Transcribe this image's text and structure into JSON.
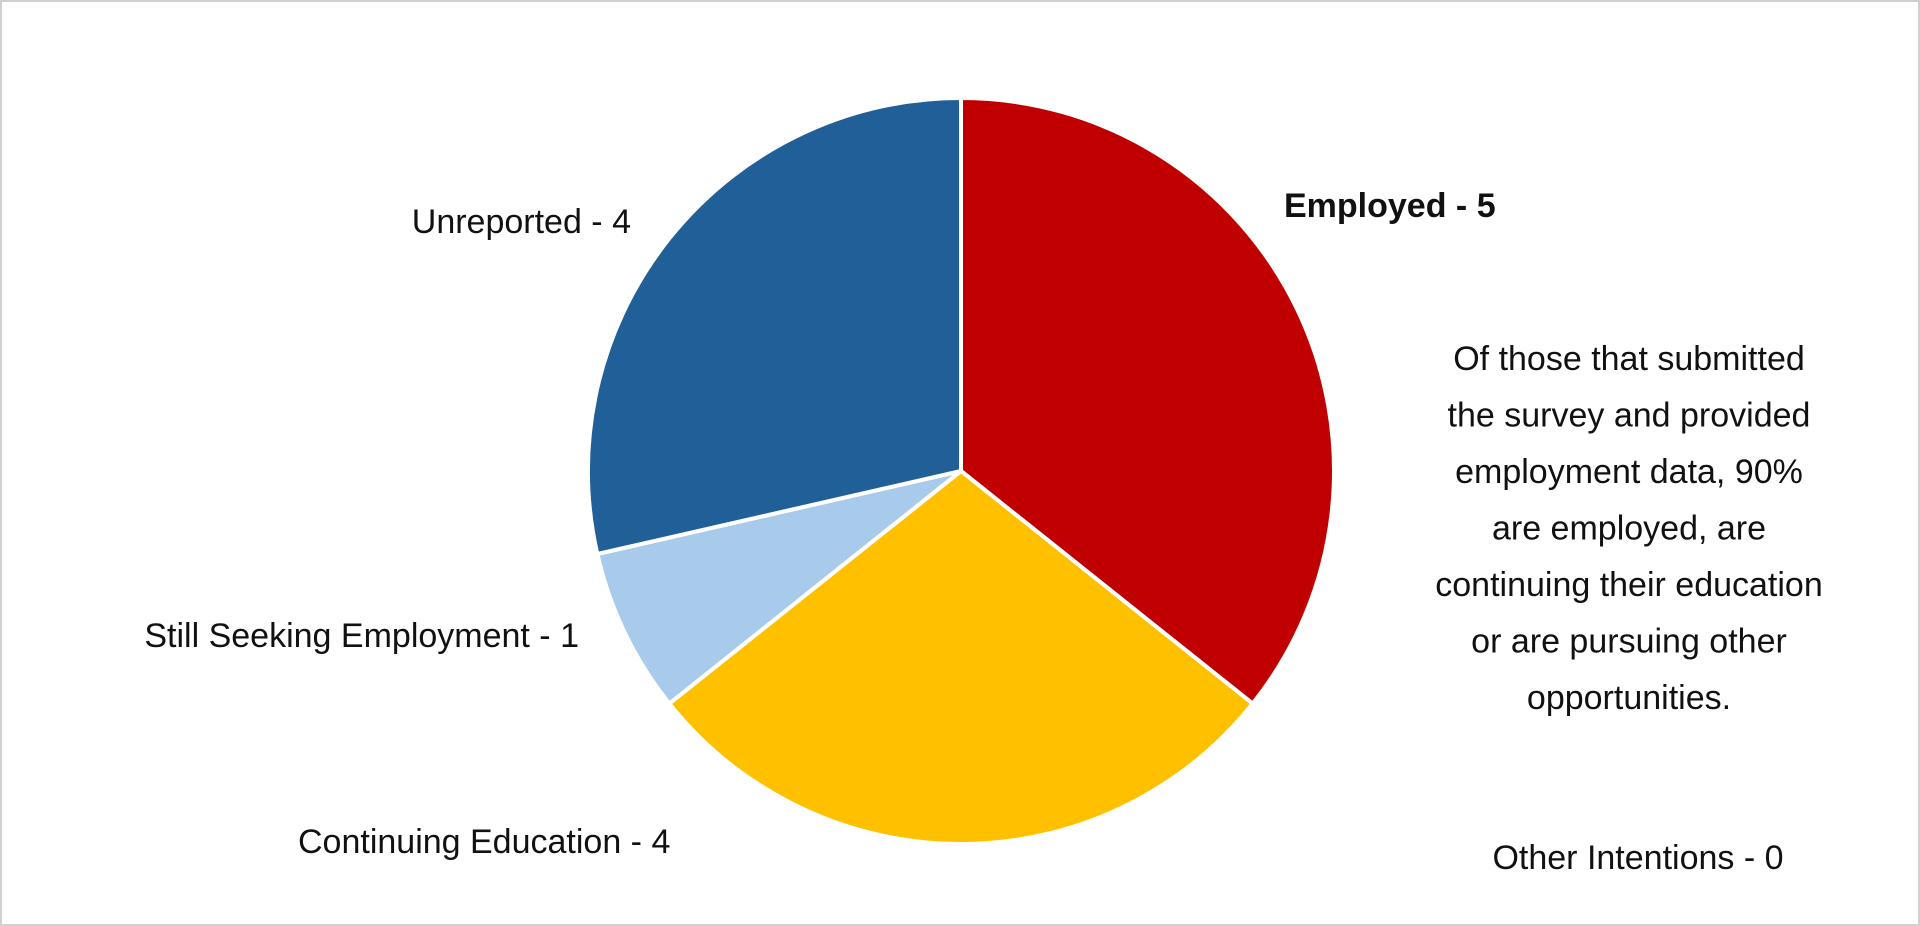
{
  "chart_data": {
    "type": "pie",
    "categories": [
      "Employed - 5",
      "Continuing Education - 4",
      "Still Seeking Employment - 1",
      "Unreported - 4",
      "Other Intentions - 0"
    ],
    "values": [
      5,
      4,
      1,
      4,
      0
    ],
    "colors": [
      "#c00000",
      "#ffc000",
      "#a9cbeb",
      "#215f98",
      "#7f7f7f"
    ],
    "annotation": [
      "Of those that submitted",
      "the survey and provided",
      "employment data, 90%",
      "are employed, are",
      "continuing their education",
      "or are pursuing other",
      "opportunities."
    ]
  }
}
